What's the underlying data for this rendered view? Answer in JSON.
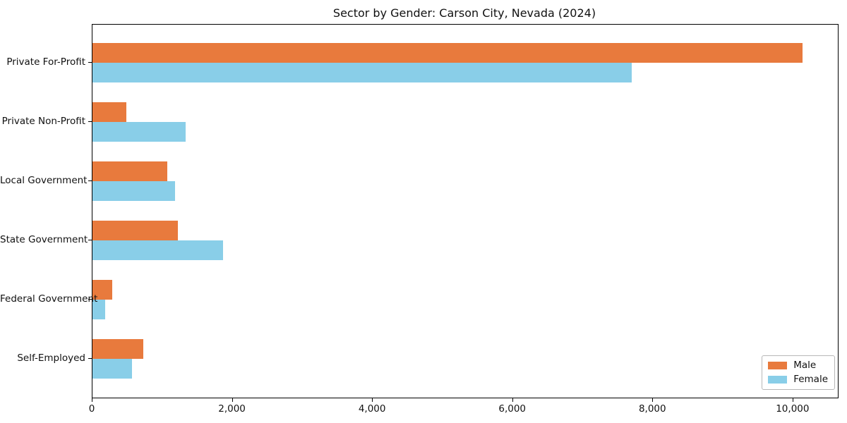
{
  "chart_data": {
    "type": "bar",
    "orientation": "horizontal",
    "title": "Sector by Gender: Carson City, Nevada (2024)",
    "categories": [
      "Private For-Profit",
      "Private Non-Profit",
      "Local Government",
      "State Government",
      "Federal Government",
      "Self-Employed"
    ],
    "series": [
      {
        "name": "Male",
        "color": "#e87a3d",
        "values": [
          10130,
          480,
          1070,
          1220,
          285,
          730
        ]
      },
      {
        "name": "Female",
        "color": "#89cee8",
        "values": [
          7700,
          1330,
          1180,
          1860,
          185,
          560
        ]
      }
    ],
    "xlabel": "",
    "ylabel": "",
    "xlim": [
      0,
      10636
    ],
    "xticks": [
      0,
      2000,
      4000,
      6000,
      8000,
      10000
    ],
    "xtick_labels": [
      "0",
      "2,000",
      "4,000",
      "6,000",
      "8,000",
      "10,000"
    ],
    "legend_position": "lower right",
    "grid": false
  }
}
